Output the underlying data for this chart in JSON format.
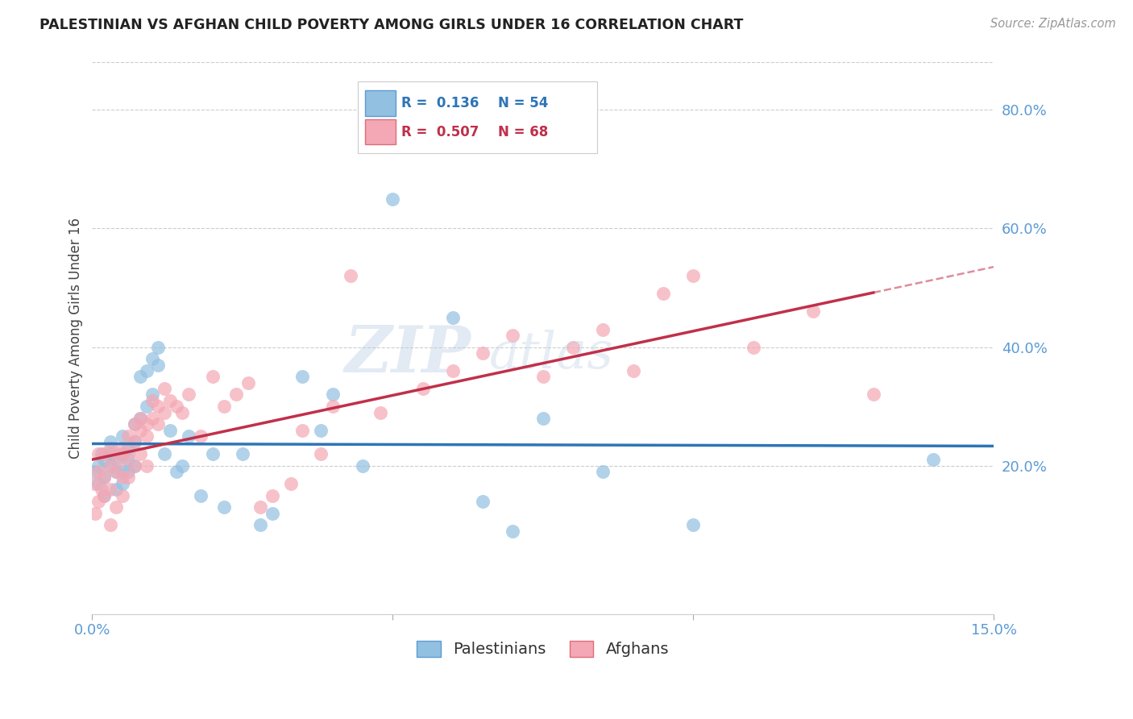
{
  "title": "PALESTINIAN VS AFGHAN CHILD POVERTY AMONG GIRLS UNDER 16 CORRELATION CHART",
  "source": "Source: ZipAtlas.com",
  "ylabel": "Child Poverty Among Girls Under 16",
  "xlim": [
    0.0,
    0.15
  ],
  "ylim": [
    -0.05,
    0.88
  ],
  "ytick_vals": [
    0.2,
    0.4,
    0.6,
    0.8
  ],
  "ytick_labels": [
    "20.0%",
    "40.0%",
    "60.0%",
    "80.0%"
  ],
  "xtick_vals": [
    0.0,
    0.05,
    0.1,
    0.15
  ],
  "xtick_labels": [
    "0.0%",
    "",
    "",
    "15.0%"
  ],
  "blue_color": "#92c0e0",
  "pink_color": "#f4a7b4",
  "blue_line_color": "#2e75b6",
  "pink_line_color": "#c0304a",
  "watermark": "ZIPAtlas",
  "watermark_color": "#b8cce4",
  "palestinians_label": "Palestinians",
  "afghans_label": "Afghans",
  "blue_scatter_x": [
    0.0005,
    0.001,
    0.001,
    0.0015,
    0.002,
    0.002,
    0.002,
    0.003,
    0.003,
    0.003,
    0.004,
    0.004,
    0.004,
    0.005,
    0.005,
    0.005,
    0.005,
    0.006,
    0.006,
    0.006,
    0.007,
    0.007,
    0.007,
    0.008,
    0.008,
    0.009,
    0.009,
    0.01,
    0.01,
    0.011,
    0.011,
    0.012,
    0.013,
    0.014,
    0.015,
    0.016,
    0.018,
    0.02,
    0.022,
    0.025,
    0.028,
    0.03,
    0.035,
    0.038,
    0.04,
    0.045,
    0.05,
    0.06,
    0.065,
    0.07,
    0.075,
    0.085,
    0.1,
    0.14
  ],
  "blue_scatter_y": [
    0.19,
    0.2,
    0.17,
    0.22,
    0.18,
    0.21,
    0.15,
    0.2,
    0.22,
    0.24,
    0.19,
    0.21,
    0.16,
    0.19,
    0.22,
    0.17,
    0.25,
    0.21,
    0.23,
    0.19,
    0.24,
    0.2,
    0.27,
    0.28,
    0.35,
    0.3,
    0.36,
    0.32,
    0.38,
    0.37,
    0.4,
    0.22,
    0.26,
    0.19,
    0.2,
    0.25,
    0.15,
    0.22,
    0.13,
    0.22,
    0.1,
    0.12,
    0.35,
    0.26,
    0.32,
    0.2,
    0.65,
    0.45,
    0.14,
    0.09,
    0.28,
    0.19,
    0.1,
    0.21
  ],
  "pink_scatter_x": [
    0.0003,
    0.0005,
    0.001,
    0.001,
    0.001,
    0.0015,
    0.002,
    0.002,
    0.002,
    0.003,
    0.003,
    0.003,
    0.003,
    0.004,
    0.004,
    0.004,
    0.005,
    0.005,
    0.005,
    0.005,
    0.006,
    0.006,
    0.006,
    0.007,
    0.007,
    0.007,
    0.008,
    0.008,
    0.008,
    0.009,
    0.009,
    0.009,
    0.01,
    0.01,
    0.011,
    0.011,
    0.012,
    0.012,
    0.013,
    0.014,
    0.015,
    0.016,
    0.018,
    0.02,
    0.022,
    0.024,
    0.026,
    0.028,
    0.03,
    0.033,
    0.035,
    0.038,
    0.04,
    0.043,
    0.048,
    0.055,
    0.06,
    0.065,
    0.07,
    0.075,
    0.08,
    0.085,
    0.09,
    0.095,
    0.1,
    0.11,
    0.12,
    0.13
  ],
  "pink_scatter_y": [
    0.17,
    0.12,
    0.19,
    0.14,
    0.22,
    0.16,
    0.18,
    0.22,
    0.15,
    0.2,
    0.16,
    0.23,
    0.1,
    0.19,
    0.22,
    0.13,
    0.23,
    0.18,
    0.21,
    0.15,
    0.22,
    0.25,
    0.18,
    0.24,
    0.2,
    0.27,
    0.26,
    0.22,
    0.28,
    0.25,
    0.27,
    0.2,
    0.28,
    0.31,
    0.27,
    0.3,
    0.29,
    0.33,
    0.31,
    0.3,
    0.29,
    0.32,
    0.25,
    0.35,
    0.3,
    0.32,
    0.34,
    0.13,
    0.15,
    0.17,
    0.26,
    0.22,
    0.3,
    0.52,
    0.29,
    0.33,
    0.36,
    0.39,
    0.42,
    0.35,
    0.4,
    0.43,
    0.36,
    0.49,
    0.52,
    0.4,
    0.46,
    0.32
  ]
}
